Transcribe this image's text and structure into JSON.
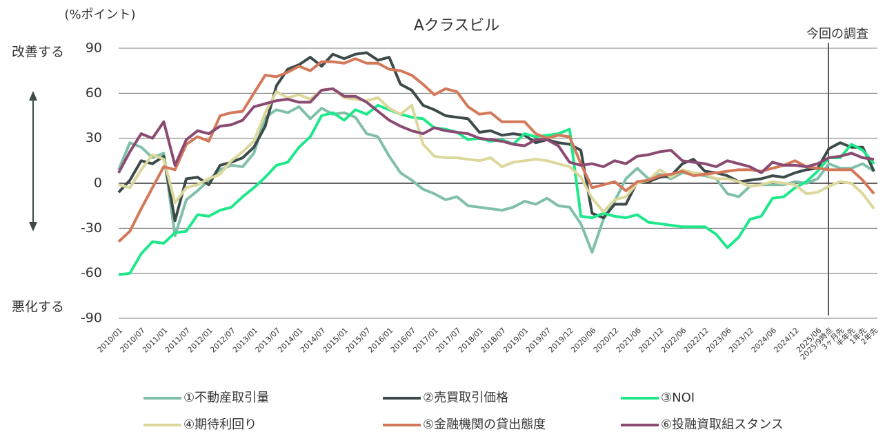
{
  "chart_data": {
    "type": "line",
    "title": "Aクラスビル",
    "y_unit": "(%ポイント)",
    "y_top_label": "改善する",
    "y_bottom_label": "悪化する",
    "marker_label": "今回の調査",
    "categories": [
      "2010/01",
      null,
      "2010/07",
      null,
      "2011/01",
      null,
      "2011/07",
      null,
      "2012/01",
      null,
      "2012/07",
      null,
      "2013/01",
      null,
      "2013/07",
      null,
      "2014/01",
      null,
      "2014/07",
      null,
      "2015/01",
      null,
      "2015/07",
      null,
      "2016/01",
      null,
      "2016/07",
      null,
      "2017/01",
      null,
      "2017/07",
      null,
      "2018/01",
      null,
      "2018/07",
      null,
      "2019/01",
      null,
      "2019/07",
      null,
      "2019/12",
      null,
      "2020/06",
      null,
      "2020/12",
      null,
      "2021/06",
      null,
      "2021/12",
      null,
      "2022/06",
      null,
      "2022/12",
      null,
      "2023/06",
      null,
      "2023/12",
      null,
      "2024/06",
      null,
      "2024/12",
      null,
      "2025/06",
      "2025/9時点",
      "3ヶ月先",
      "半年先",
      "1年先",
      "2年先"
    ],
    "series": [
      {
        "name": "①不動産取引量",
        "color": "#80bfa9",
        "values": [
          9,
          27,
          24,
          17,
          20,
          -35,
          -11,
          -5,
          2,
          9,
          12,
          11,
          20,
          44,
          49,
          47,
          51,
          43,
          50,
          46,
          47,
          44,
          33,
          31,
          18,
          7,
          2,
          -4,
          -7,
          -11,
          -9,
          -15,
          -16,
          -17,
          -18,
          -16,
          -12,
          -14,
          -10,
          -15,
          -16,
          -27,
          -46,
          -24,
          -12,
          3,
          10,
          3,
          6,
          3,
          7,
          6,
          5,
          3,
          -7,
          -9,
          -2,
          -1,
          -1,
          -1,
          1,
          0,
          3,
          13,
          10,
          10,
          13,
          8
        ]
      },
      {
        "name": "②売買取引価格",
        "color": "#3c4a4a",
        "values": [
          -6,
          2,
          15,
          13,
          18,
          -25,
          3,
          4,
          -1,
          12,
          14,
          17,
          24,
          38,
          65,
          76,
          79,
          84,
          78,
          86,
          83,
          86,
          87,
          82,
          84,
          66,
          62,
          52,
          49,
          45,
          44,
          43,
          34,
          35,
          32,
          33,
          32,
          27,
          29,
          27,
          26,
          22,
          -20,
          -23,
          -14,
          -14,
          1,
          1,
          4,
          5,
          13,
          16,
          8,
          7,
          5,
          1,
          2,
          3,
          5,
          4,
          7,
          9,
          10,
          23,
          27,
          24,
          24,
          8
        ]
      },
      {
        "name": "③NOI",
        "color": "#1fe88b",
        "values": [
          -61,
          -60,
          -47,
          -39,
          -40,
          -33,
          -32,
          -21,
          -22,
          -18,
          -16,
          -9,
          -3,
          4,
          12,
          14,
          24,
          31,
          45,
          47,
          42,
          49,
          46,
          52,
          49,
          46,
          44,
          43,
          37,
          36,
          34,
          29,
          30,
          28,
          29,
          26,
          33,
          31,
          32,
          33,
          36,
          -22,
          -23,
          -20,
          -22,
          -23,
          -21,
          -26,
          -27,
          -28,
          -29,
          -29,
          -29,
          -34,
          -43,
          -36,
          -24,
          -22,
          -10,
          -9,
          -3,
          1,
          8,
          17,
          17,
          26,
          22,
          13
        ]
      },
      {
        "name": "④期待利回り",
        "color": "#dcd79b",
        "values": [
          -1,
          -3,
          9,
          19,
          16,
          -13,
          -3,
          -1,
          3,
          6,
          15,
          21,
          28,
          47,
          61,
          57,
          59,
          56,
          62,
          63,
          57,
          56,
          55,
          57,
          50,
          46,
          52,
          26,
          18,
          17,
          17,
          16,
          15,
          17,
          11,
          14,
          15,
          16,
          15,
          13,
          11,
          4,
          -10,
          -19,
          -11,
          -9,
          0,
          2,
          9,
          4,
          9,
          7,
          6,
          3,
          3,
          1,
          -2,
          -1,
          1,
          0,
          -1,
          -7,
          -6,
          -2,
          1,
          0,
          -7,
          -17
        ]
      },
      {
        "name": "⑤金融機関の貸出態度",
        "color": "#d4785a",
        "values": [
          -39,
          -32,
          -17,
          -3,
          11,
          9,
          26,
          31,
          28,
          45,
          47,
          48,
          60,
          72,
          71,
          74,
          78,
          75,
          81,
          81,
          80,
          83,
          80,
          80,
          76,
          75,
          72,
          66,
          59,
          63,
          61,
          51,
          46,
          47,
          41,
          41,
          41,
          33,
          30,
          32,
          31,
          13,
          -3,
          -1,
          1,
          -5,
          1,
          2,
          5,
          6,
          8,
          5,
          6,
          7,
          8,
          9,
          9,
          8,
          10,
          12,
          15,
          11,
          10,
          9,
          9,
          9,
          2,
          -7
        ]
      },
      {
        "name": "⑥投融資取組スタンス",
        "color": "#8a4a72",
        "values": [
          7,
          21,
          33,
          30,
          41,
          12,
          29,
          35,
          33,
          38,
          39,
          42,
          51,
          53,
          55,
          56,
          54,
          54,
          62,
          63,
          58,
          58,
          54,
          48,
          42,
          38,
          35,
          33,
          37,
          35,
          34,
          33,
          30,
          29,
          28,
          26,
          25,
          29,
          29,
          25,
          14,
          12,
          13,
          11,
          15,
          13,
          18,
          19,
          21,
          22,
          15,
          14,
          13,
          11,
          15,
          13,
          11,
          7,
          14,
          12,
          12,
          11,
          13,
          17,
          18,
          20,
          17,
          16
        ]
      }
    ],
    "ylim": [
      -90,
      90
    ],
    "yticks": [
      -90,
      -60,
      -30,
      0,
      30,
      60,
      90
    ],
    "grid": true
  }
}
